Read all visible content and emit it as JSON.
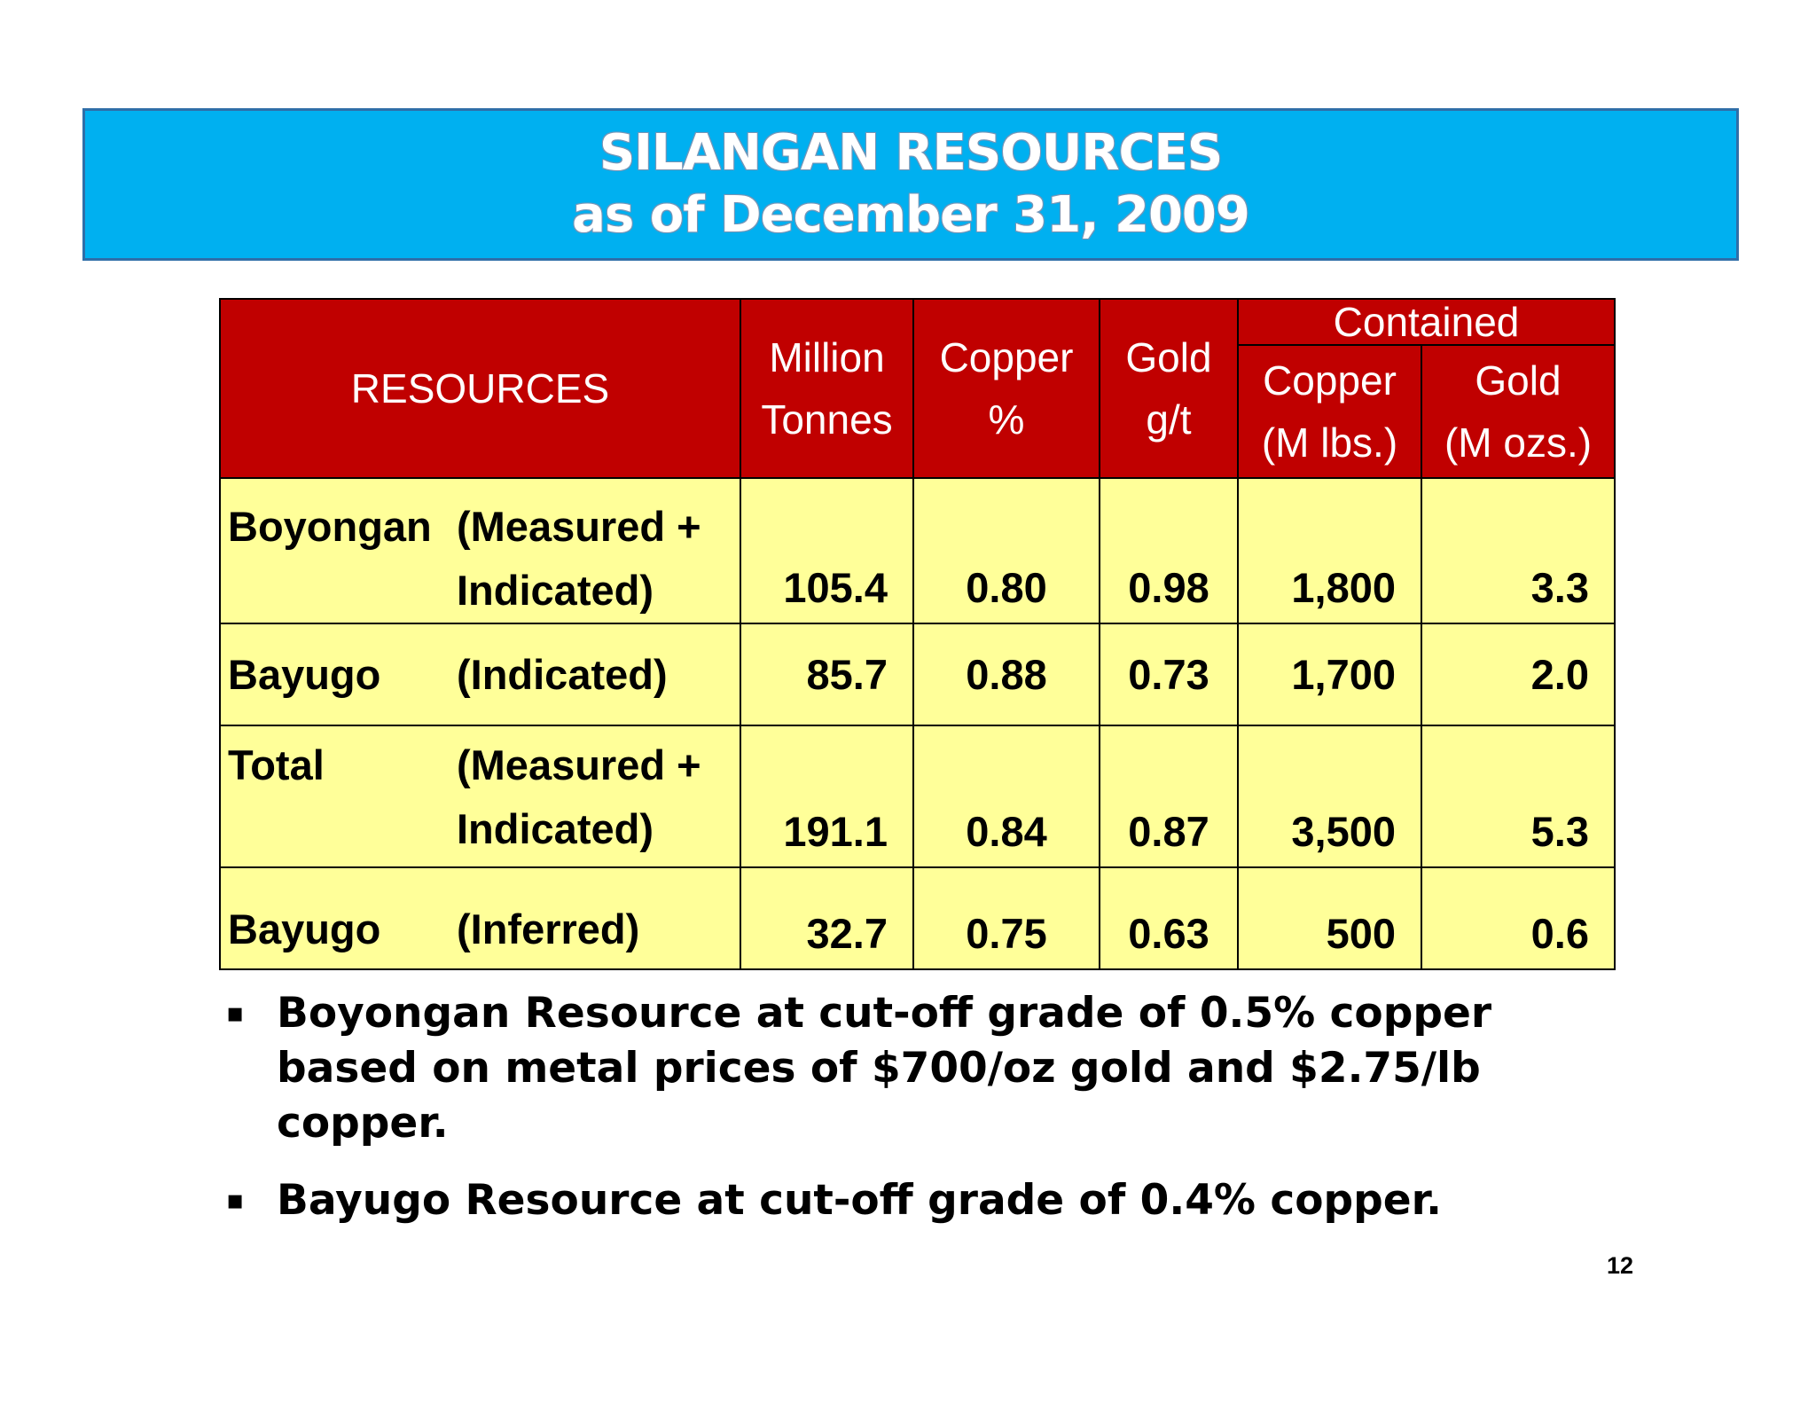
{
  "title": {
    "line1": "SILANGAN RESOURCES",
    "line2": "as of December 31, 2009"
  },
  "table": {
    "header": {
      "resources": "RESOURCES",
      "tonnes_line1": "Million",
      "tonnes_line2": "Tonnes",
      "copper_pct_line1": "Copper",
      "copper_pct_line2": "%",
      "gold_gt_line1": "Gold",
      "gold_gt_line2": "g/t",
      "contained": "Contained",
      "contained_copper_line1": "Copper",
      "contained_copper_line2": "(M lbs.)",
      "contained_gold_line1": "Gold",
      "contained_gold_line2": "(M ozs.)"
    },
    "rows": [
      {
        "name": "Boyongan",
        "class_line1": "(Measured +",
        "class_line2": "Indicated)",
        "tonnes": "105.4",
        "copper_pct": "0.80",
        "gold_gt": "0.98",
        "copper_mlbs": "1,800",
        "gold_mozs": "3.3"
      },
      {
        "name": "Bayugo",
        "class_line1": "(Indicated)",
        "class_line2": "",
        "tonnes": "85.7",
        "copper_pct": "0.88",
        "gold_gt": "0.73",
        "copper_mlbs": "1,700",
        "gold_mozs": "2.0"
      },
      {
        "name": "Total",
        "class_line1": "(Measured +",
        "class_line2": "Indicated)",
        "tonnes": "191.1",
        "copper_pct": "0.84",
        "gold_gt": "0.87",
        "copper_mlbs": "3,500",
        "gold_mozs": "5.3"
      },
      {
        "name": "Bayugo",
        "class_line1": "(Inferred)",
        "class_line2": "",
        "tonnes": "32.7",
        "copper_pct": "0.75",
        "gold_gt": "0.63",
        "copper_mlbs": "500",
        "gold_mozs": "0.6"
      }
    ]
  },
  "bullets": [
    "Boyongan Resource at cut-off grade of  0.5% copper based on metal prices of $700/oz gold and $2.75/lb copper.",
    "Bayugo Resource at cut-off grade of 0.4% copper."
  ],
  "bullet_marker": "▪",
  "page_number": "12",
  "colors": {
    "banner": "#00b0f0",
    "header": "#c00000",
    "body": "#ffff99"
  }
}
